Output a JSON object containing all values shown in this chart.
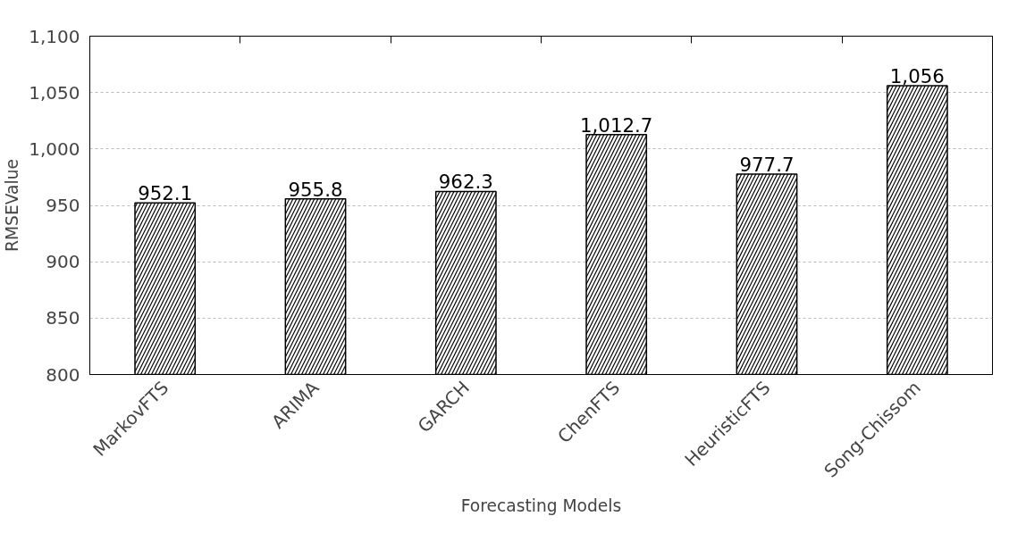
{
  "chart_data": {
    "type": "bar",
    "xlabel": "Forecasting Models",
    "ylabel": "RMSEValue",
    "categories": [
      "MarkovFTS",
      "ARIMA",
      "GARCH",
      "ChenFTS",
      "HeuristicFTS",
      "Song-Chissom"
    ],
    "values": [
      952.1,
      955.8,
      962.3,
      1012.7,
      977.7,
      1056
    ],
    "value_labels": [
      "952.1",
      "955.8",
      "962.3",
      "1,012.7",
      "977.7",
      "1,056"
    ],
    "color": "#000000",
    "ylim": [
      800,
      1100
    ],
    "yticks": [
      800,
      850,
      900,
      950,
      {
        "value": 1000,
        "label": "1,000"
      },
      {
        "value": 1050,
        "label": "1,050"
      },
      {
        "value": 1100,
        "label": "1,100"
      }
    ],
    "grid": "y"
  }
}
